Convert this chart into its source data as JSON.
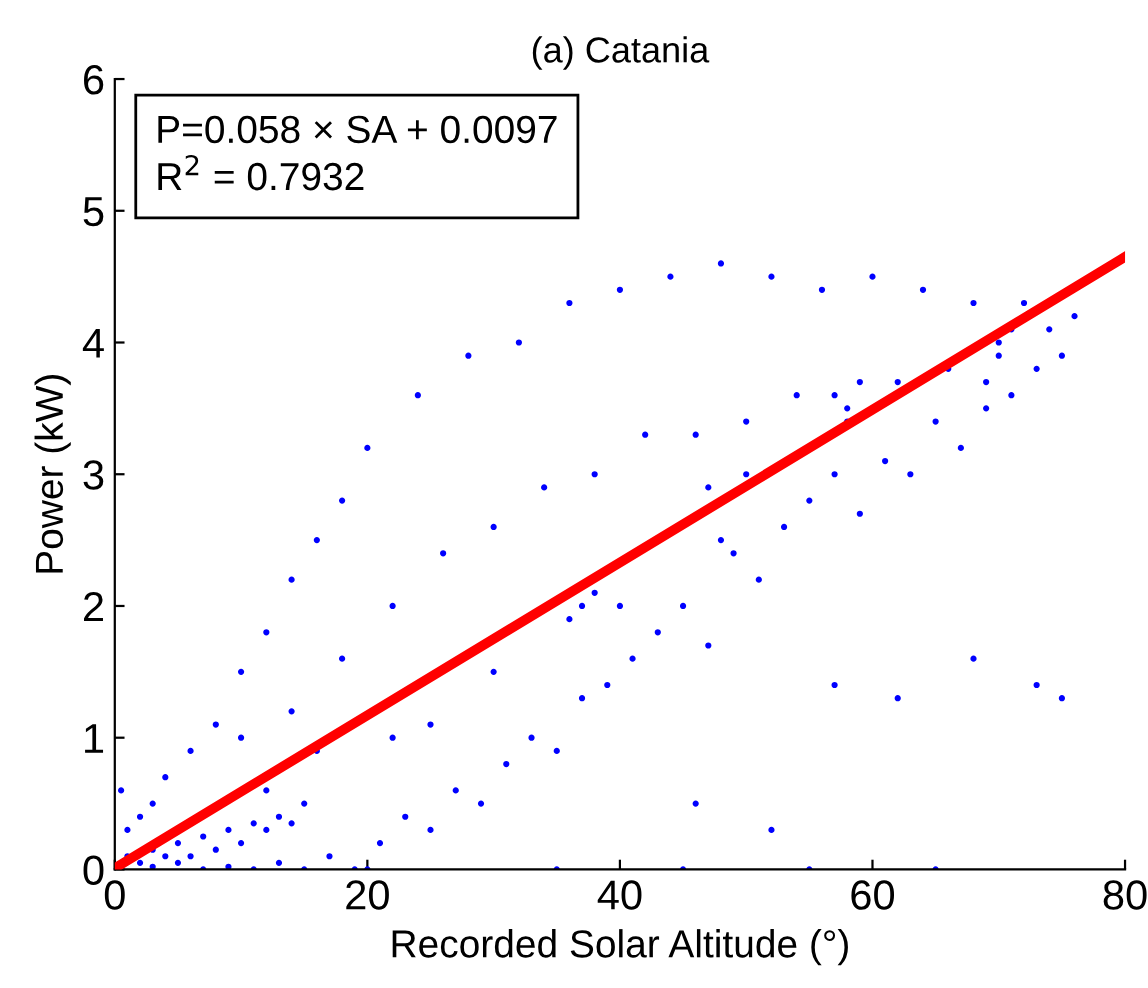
{
  "chart_data": {
    "type": "scatter",
    "title": "(a) Catania",
    "xlabel": "Recorded Solar Altitude (°)",
    "ylabel": "Power (kW)",
    "xlim": [
      0,
      80
    ],
    "ylim": [
      0,
      6
    ],
    "xticks": [
      0,
      20,
      40,
      60,
      80
    ],
    "yticks": [
      0,
      1,
      2,
      3,
      4,
      5,
      6
    ],
    "grid": false,
    "annotations": [
      "P=0.058 × SA + 0.0097",
      "R$^{2}$ = 0.7932"
    ],
    "series": [
      {
        "color": "#0000ff",
        "marker": "circle",
        "x": [
          0.5,
          1,
          2,
          3,
          4,
          5,
          6,
          7,
          8,
          9,
          10,
          11,
          12,
          13,
          14,
          15,
          2,
          4,
          6,
          8,
          10,
          12,
          14,
          16,
          18,
          3,
          5,
          7,
          9,
          11,
          13,
          15,
          17,
          19,
          21,
          23,
          25,
          27,
          29,
          31,
          33,
          35,
          37,
          39,
          41,
          43,
          45,
          47,
          49,
          51,
          53,
          55,
          57,
          59,
          61,
          63,
          65,
          67,
          69,
          71,
          73,
          75,
          10,
          14,
          18,
          22,
          26,
          30,
          34,
          38,
          42,
          46,
          50,
          54,
          58,
          62,
          66,
          70,
          74,
          76,
          20,
          24,
          28,
          32,
          36,
          40,
          44,
          48,
          52,
          56,
          60,
          64,
          68,
          72,
          22,
          25,
          37,
          36,
          38,
          47,
          48,
          50,
          57,
          58,
          59,
          69,
          70,
          71,
          12,
          16,
          30,
          40,
          20,
          35,
          45,
          55,
          65,
          57,
          62,
          68,
          73,
          46,
          52,
          75,
          1,
          3
        ],
        "values": [
          0.6,
          0.1,
          0.05,
          0.15,
          0.1,
          0.2,
          0.1,
          0.25,
          0.15,
          0.3,
          0.2,
          0.35,
          0.3,
          0.4,
          0.35,
          0.5,
          0.4,
          0.7,
          0.9,
          1.1,
          1.5,
          1.8,
          2.2,
          2.5,
          2.8,
          0.02,
          0.05,
          0.0,
          0.02,
          0.0,
          0.05,
          0.0,
          0.1,
          0.0,
          0.2,
          0.4,
          0.3,
          0.6,
          0.5,
          0.8,
          1.0,
          0.9,
          1.3,
          1.4,
          1.6,
          1.8,
          2.0,
          1.7,
          2.4,
          2.2,
          2.6,
          2.8,
          3.0,
          2.7,
          3.1,
          3.0,
          3.4,
          3.2,
          3.5,
          3.6,
          3.8,
          3.9,
          1.0,
          1.2,
          1.6,
          2.0,
          2.4,
          2.6,
          2.9,
          3.0,
          3.3,
          3.3,
          3.4,
          3.6,
          3.4,
          3.7,
          3.8,
          4.0,
          4.1,
          4.2,
          3.2,
          3.6,
          3.9,
          4.0,
          4.3,
          4.4,
          4.5,
          4.6,
          4.5,
          4.4,
          4.5,
          4.4,
          4.3,
          4.3,
          1.0,
          1.1,
          2.0,
          1.9,
          2.1,
          2.9,
          2.5,
          3.0,
          3.6,
          3.5,
          3.7,
          3.7,
          3.9,
          4.1,
          0.6,
          0.9,
          1.5,
          2.0,
          0.0,
          0.0,
          0.0,
          0.0,
          0.0,
          1.4,
          1.3,
          1.6,
          1.4,
          0.5,
          0.3,
          1.3,
          0.3,
          0.5
        ]
      },
      {
        "type": "line",
        "color": "#ff0000",
        "x": [
          0,
          80
        ],
        "values": [
          0.01,
          4.65
        ]
      }
    ]
  }
}
